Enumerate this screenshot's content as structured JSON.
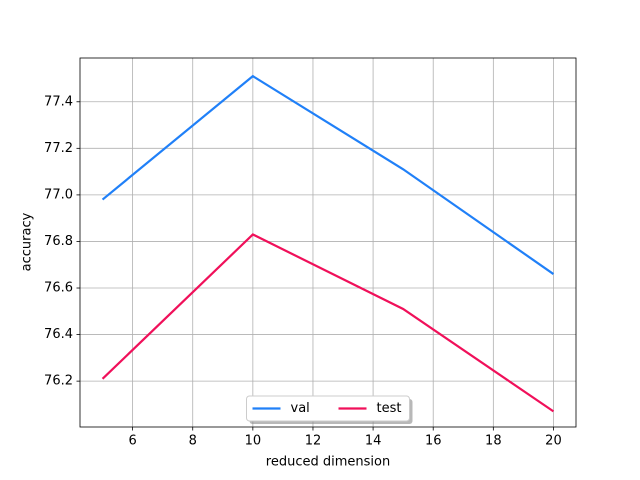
{
  "chart_data": {
    "type": "line",
    "xlabel": "reduced dimension",
    "ylabel": "accuracy",
    "x": [
      5,
      10,
      15,
      20
    ],
    "series": [
      {
        "name": "val",
        "color": "#2080f8",
        "values": [
          76.98,
          77.51,
          77.11,
          76.66
        ]
      },
      {
        "name": "test",
        "color": "#f0105a",
        "values": [
          76.21,
          76.83,
          76.51,
          76.07
        ]
      }
    ],
    "xlim": [
      4.25,
      20.75
    ],
    "xticks": [
      6,
      8,
      10,
      12,
      14,
      16,
      18,
      20
    ],
    "ylim": [
      76.003,
      77.588
    ],
    "yticks": [
      76.2,
      76.4,
      76.6,
      76.8,
      77.0,
      77.2,
      77.4
    ],
    "grid": true,
    "legend": "lower center"
  }
}
